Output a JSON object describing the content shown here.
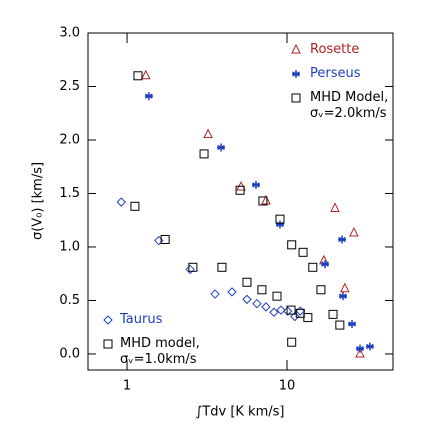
{
  "chart_data": {
    "type": "scatter",
    "xlabel": "∫Tdv [K km/s]",
    "ylabel": "σ(V₀) [km/s]",
    "xlim": [
      0.57,
      46
    ],
    "ylim": [
      -0.15,
      3.0
    ],
    "xscale": "log",
    "xticks": [
      1,
      10
    ],
    "yticks": [
      {
        "value": 0,
        "label": "0.0"
      },
      0.5,
      {
        "value": 1,
        "label": "1.0"
      },
      1.5,
      {
        "value": 2,
        "label": "2.0"
      },
      2.5,
      {
        "value": 3,
        "label": "3.0"
      }
    ],
    "series": [
      {
        "name": "Rosette",
        "color": "#b22222",
        "marker": "triangle",
        "legend": "upper right",
        "x": [
          1.31,
          3.21,
          5.16,
          7.39,
          19.95,
          26.2,
          23.0,
          28.6,
          17.0
        ],
        "values": [
          2.6,
          2.05,
          1.56,
          1.43,
          1.36,
          1.13,
          0.61,
          0.0,
          0.87
        ]
      },
      {
        "name": "Perseus",
        "color": "#1f3fbf",
        "marker": "asterisk",
        "legend": "upper right",
        "x": [
          1.37,
          3.87,
          6.4,
          9.04,
          17.3,
          22.1,
          22.4,
          25.5,
          28.6,
          33.0
        ],
        "values": [
          2.41,
          1.93,
          1.58,
          1.21,
          0.84,
          1.07,
          0.54,
          0.28,
          0.05,
          0.07
        ]
      },
      {
        "name": "MHD Model, σᵥ=2.0km/s",
        "color": "#000000",
        "marker": "square",
        "legend": "upper right",
        "x": [
          1.17,
          3.03,
          5.09,
          7.07,
          9.04,
          10.7,
          12.6,
          14.5,
          16.3,
          19.4,
          21.4
        ],
        "values": [
          2.6,
          1.87,
          1.53,
          1.43,
          1.26,
          1.02,
          0.95,
          0.81,
          0.6,
          0.37,
          0.27
        ]
      },
      {
        "name": "Taurus",
        "color": "#1f3fbf",
        "marker": "diamond",
        "legend": "lower left",
        "x": [
          0.92,
          1.58,
          2.48,
          3.55,
          4.53,
          5.62,
          6.49,
          7.39,
          8.29,
          9.17,
          10.1,
          11.2,
          12.1
        ],
        "values": [
          1.42,
          1.06,
          0.79,
          0.56,
          0.58,
          0.51,
          0.47,
          0.44,
          0.39,
          0.41,
          0.4,
          0.35,
          0.4
        ]
      },
      {
        "name": "MHD model, σᵥ=1.0km/s",
        "color": "#000000",
        "marker": "square",
        "legend": "lower left",
        "x": [
          1.12,
          1.73,
          2.58,
          3.92,
          5.62,
          6.97,
          8.66,
          10.6,
          12.1,
          13.5,
          10.7
        ],
        "values": [
          1.38,
          1.07,
          0.81,
          0.81,
          0.67,
          0.6,
          0.54,
          0.41,
          0.38,
          0.34,
          0.11
        ]
      }
    ]
  }
}
